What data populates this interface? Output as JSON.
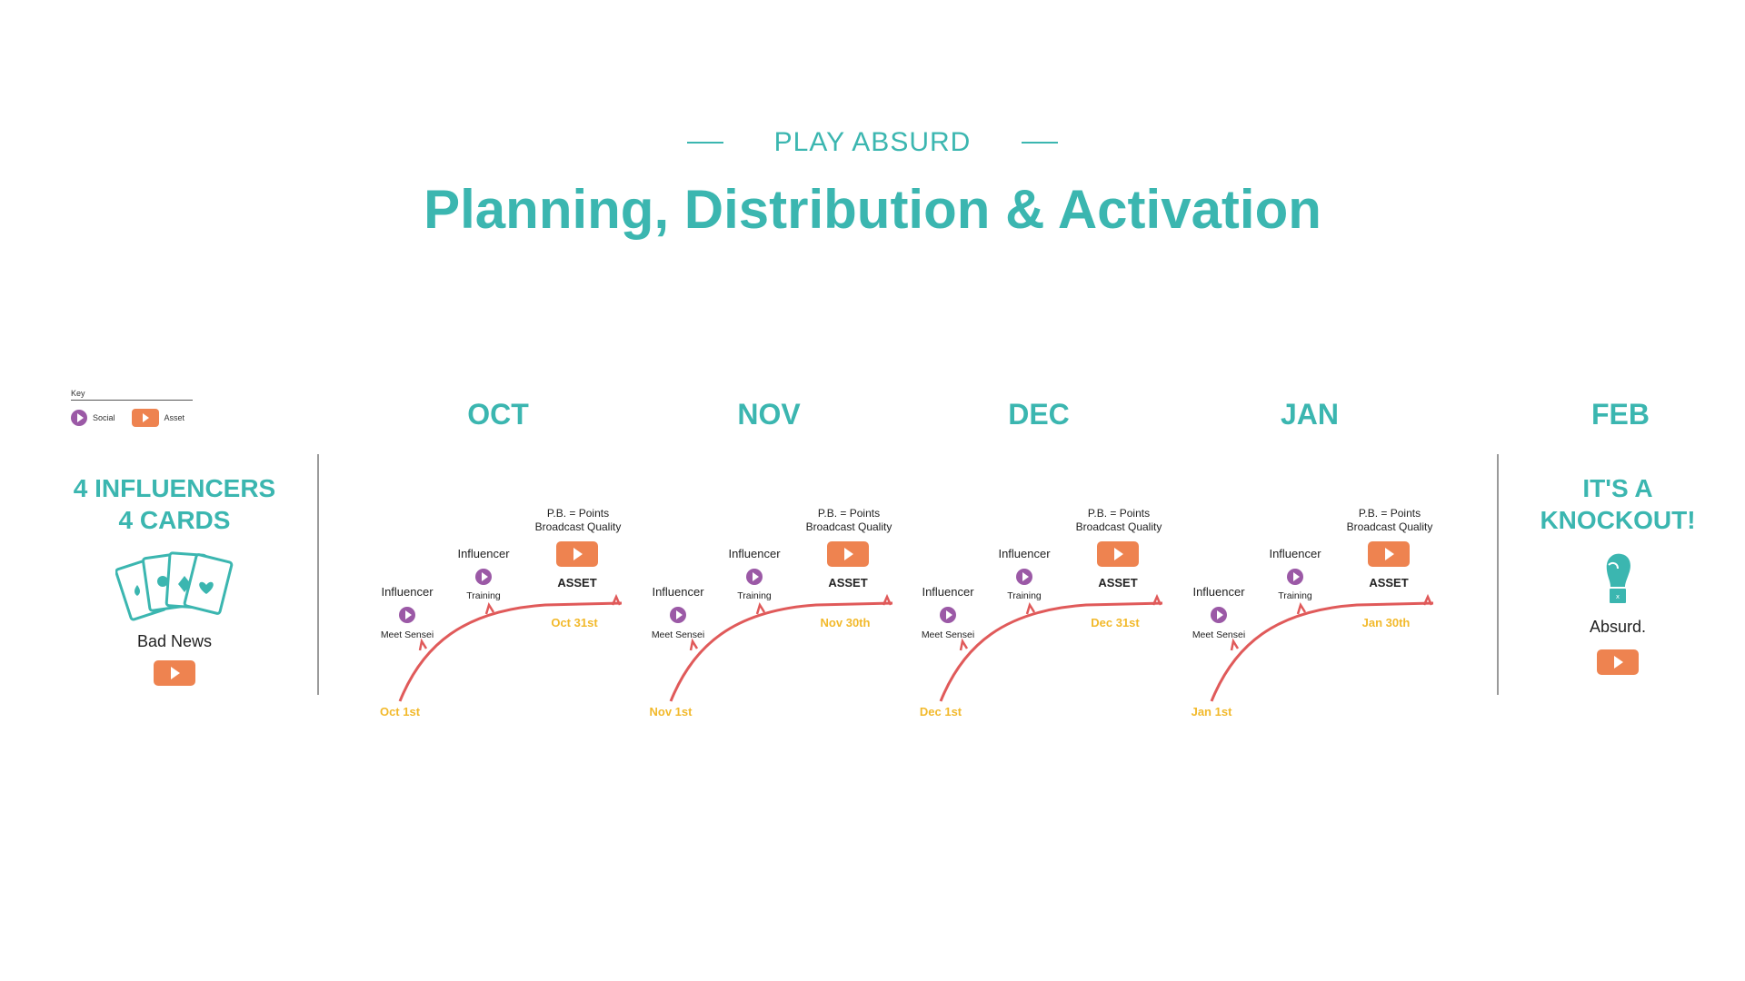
{
  "header": {
    "eyebrow": "PLAY ABSURD",
    "title": "Planning, Distribution & Activation"
  },
  "key": {
    "label": "Key",
    "items": [
      {
        "icon": "social-play-icon",
        "label": "Social"
      },
      {
        "icon": "asset-play-icon",
        "label": "Asset"
      }
    ]
  },
  "intro": {
    "heading_line1": "4 INFLUENCERS",
    "heading_line2": "4 CARDS",
    "icon": "playing-cards-icon",
    "caption": "Bad News",
    "button_icon": "asset-play-icon"
  },
  "months": [
    "OCT",
    "NOV",
    "DEC",
    "JAN",
    "FEB"
  ],
  "timelines": [
    {
      "start": "Oct 1st",
      "end": "Oct 31st",
      "sensei_label": "Influencer",
      "sensei_caption": "Meet Sensei",
      "training_label": "Influencer",
      "training_caption": "Training",
      "pb_line1": "P.B. = Points",
      "pb_line2": "Broadcast Quality",
      "asset_label": "ASSET"
    },
    {
      "start": "Nov 1st",
      "end": "Nov 30th",
      "sensei_label": "Influencer",
      "sensei_caption": "Meet Sensei",
      "training_label": "Influencer",
      "training_caption": "Training",
      "pb_line1": "P.B. = Points",
      "pb_line2": "Broadcast Quality",
      "asset_label": "ASSET"
    },
    {
      "start": "Dec 1st",
      "end": "Dec 31st",
      "sensei_label": "Influencer",
      "sensei_caption": "Meet Sensei",
      "training_label": "Influencer",
      "training_caption": "Training",
      "pb_line1": "P.B. = Points",
      "pb_line2": "Broadcast Quality",
      "asset_label": "ASSET"
    },
    {
      "start": "Jan 1st",
      "end": "Jan 30th",
      "sensei_label": "Influencer",
      "sensei_caption": "Meet Sensei",
      "training_label": "Influencer",
      "training_caption": "Training",
      "pb_line1": "P.B. = Points",
      "pb_line2": "Broadcast Quality",
      "asset_label": "ASSET"
    }
  ],
  "finale": {
    "heading_line1": "IT'S A",
    "heading_line2": "KNOCKOUT!",
    "icon": "boxing-glove-icon",
    "caption": "Absurd.",
    "button_icon": "asset-play-icon"
  },
  "colors": {
    "teal": "#3bb6b0",
    "social": "#9b59a6",
    "asset": "#ee8350",
    "curve": "#e05a5a",
    "date": "#f2b92b"
  }
}
